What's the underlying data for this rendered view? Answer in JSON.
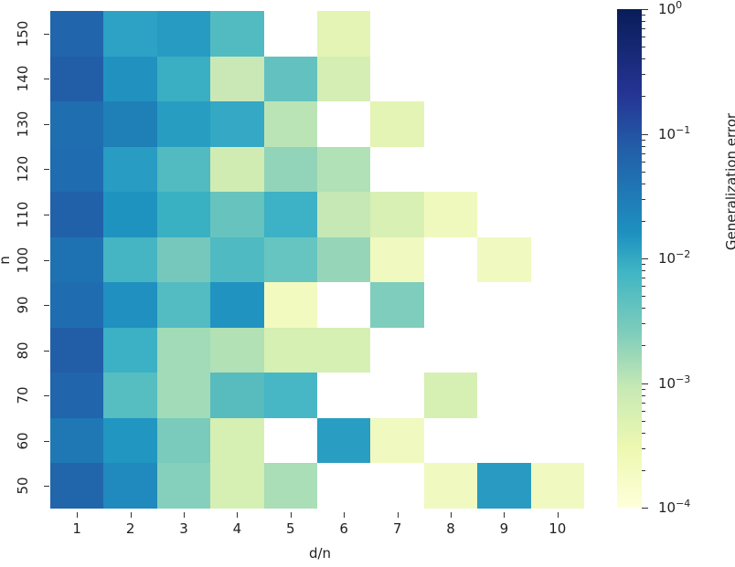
{
  "chart_data": {
    "type": "heatmap",
    "title": "",
    "xlabel": "d/n",
    "ylabel": "n",
    "x": [
      1,
      2,
      3,
      4,
      5,
      6,
      7,
      8,
      9,
      10
    ],
    "y": [
      150,
      140,
      130,
      120,
      110,
      100,
      90,
      80,
      70,
      60,
      50
    ],
    "colorbar": {
      "label": "Generalization error",
      "scale": "log",
      "range": [
        0.0001,
        1
      ],
      "ticks": [
        "10^0",
        "10^-1",
        "10^-2",
        "10^-3",
        "10^-4"
      ],
      "colormap": "YlGnBu"
    },
    "values_approx": [
      [
        0.15,
        0.02,
        0.025,
        0.008,
        null,
        0.0004,
        null,
        null,
        null,
        null
      ],
      [
        0.2,
        0.035,
        0.014,
        0.0012,
        0.007,
        0.0008,
        null,
        null,
        null,
        null
      ],
      [
        0.12,
        0.06,
        0.025,
        0.018,
        0.0015,
        null,
        0.0004,
        null,
        null,
        null
      ],
      [
        0.13,
        0.025,
        0.008,
        0.0009,
        0.003,
        0.0018,
        null,
        null,
        null,
        null
      ],
      [
        0.18,
        0.035,
        0.014,
        0.006,
        0.013,
        0.0013,
        0.0007,
        0.0002,
        null,
        null
      ],
      [
        0.1,
        0.011,
        0.005,
        0.009,
        0.006,
        0.0025,
        0.0002,
        null,
        0.0002,
        null
      ],
      [
        0.13,
        0.04,
        0.008,
        0.035,
        0.00018,
        null,
        0.004,
        null,
        null,
        null
      ],
      [
        0.2,
        0.014,
        0.002,
        0.0017,
        0.0007,
        0.0007,
        null,
        null,
        null,
        null
      ],
      [
        0.15,
        0.008,
        0.002,
        0.008,
        0.011,
        null,
        null,
        0.0007,
        null,
        null
      ],
      [
        0.09,
        0.03,
        0.005,
        0.0007,
        null,
        0.025,
        0.0002,
        null,
        null,
        null
      ],
      [
        0.15,
        0.05,
        0.004,
        0.0007,
        0.002,
        null,
        null,
        0.0002,
        0.027,
        0.0002
      ]
    ],
    "cell_colors": [
      [
        "#2166ac",
        "#2ea2c4",
        "#289bc2",
        "#52bbc1",
        null,
        "#e4f4b4",
        null,
        null,
        null,
        null
      ],
      [
        "#225ea8",
        "#2192c0",
        "#3aafc3",
        "#c9e8b6",
        "#63c2bf",
        "#d4eeb3",
        null,
        null,
        null,
        null
      ],
      [
        "#1f6eb0",
        "#1f80b8",
        "#289dc2",
        "#34a8c4",
        "#bae4b5",
        null,
        "#e3f4b4",
        null,
        null,
        null
      ],
      [
        "#1f6cb0",
        "#289cc2",
        "#51bbc1",
        "#d0ecb3",
        "#92d4b9",
        "#b1e1b6",
        null,
        null,
        null,
        null
      ],
      [
        "#2161aa",
        "#1f93c0",
        "#3ab0c3",
        "#66c3be",
        "#3db1c5",
        "#c6e8b5",
        "#d8f0b3",
        "#f0f9bd",
        null,
        null
      ],
      [
        "#1f72b1",
        "#45b5c4",
        "#76c8bd",
        "#4fbac2",
        "#66c5c0",
        "#97d5b9",
        "#f0f9c0",
        null,
        "#f0f9c0",
        null
      ],
      [
        "#1f6db0",
        "#2090c0",
        "#53bcc2",
        "#2193c1",
        "#f2fac0",
        null,
        "#7fcdbc",
        null,
        null,
        null
      ],
      [
        "#225ea8",
        "#3cb0c4",
        "#a2dbb8",
        "#b1e1b5",
        "#d6efb3",
        "#d6efb3",
        null,
        null,
        null,
        null
      ],
      [
        "#2165ac",
        "#56bdc1",
        "#a2dbb8",
        "#58bcbe",
        "#47b7c5",
        null,
        null,
        "#d6efb3",
        null,
        null
      ],
      [
        "#1f78b4",
        "#2196c1",
        "#7acbbc",
        "#d6efb3",
        null,
        "#299dc2",
        "#f0f9c0",
        null,
        null,
        null
      ],
      [
        "#2166ab",
        "#2089bd",
        "#85d0bc",
        "#d6efb3",
        "#a9deb7",
        null,
        null,
        "#f0f9c0",
        "#299bc2",
        "#f0f9c0"
      ]
    ],
    "legend_position": "right",
    "grid": false
  },
  "axes": {
    "xlabel": "d/n",
    "ylabel": "n",
    "xticks": [
      "1",
      "2",
      "3",
      "4",
      "5",
      "6",
      "7",
      "8",
      "9",
      "10"
    ],
    "yticks": [
      "150",
      "140",
      "130",
      "120",
      "110",
      "100",
      "90",
      "80",
      "70",
      "60",
      "50"
    ]
  },
  "colorbar": {
    "title": "Generalization error",
    "ticks": [
      {
        "base": "10",
        "exp": "0"
      },
      {
        "base": "10",
        "exp": "−1"
      },
      {
        "base": "10",
        "exp": "−2"
      },
      {
        "base": "10",
        "exp": "−3"
      },
      {
        "base": "10",
        "exp": "−4"
      }
    ]
  }
}
